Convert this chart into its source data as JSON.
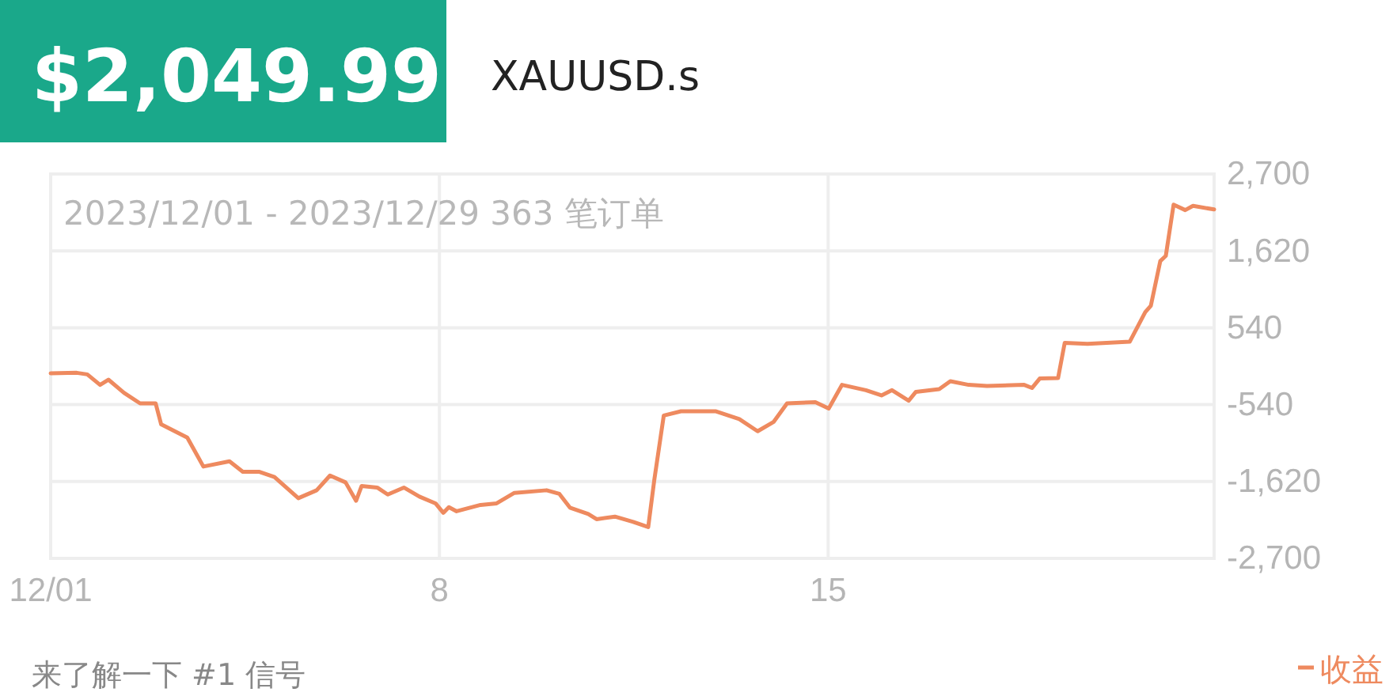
{
  "chart_data": {
    "type": "line",
    "title": "$2,049.99",
    "subtitle": "XAUUSD.s",
    "annotations": [
      "2023/12/01 - 2023/12/29 363 笔订单",
      "来了解一下 #1 信号"
    ],
    "xlim": [
      1,
      21.95
    ],
    "xticks": [
      {
        "value": 1,
        "label": "12/01"
      },
      8,
      15
    ],
    "ylim": [
      -2700,
      2700
    ],
    "yticks": [
      {
        "value": 2700,
        "label": "2,700"
      },
      {
        "value": 1620,
        "label": "1,620"
      },
      540,
      -540,
      {
        "value": -1620,
        "label": "-1,620"
      },
      {
        "value": -2700,
        "label": "-2,700"
      }
    ],
    "grid": true,
    "legend": "bottom right",
    "marker": "none",
    "line_style": "solid",
    "series": [
      {
        "name": "收益",
        "color": "#ee8a5f",
        "x": [
          1,
          1.47,
          1.66,
          1.89,
          2.04,
          2.32,
          2.61,
          2.89,
          2.99,
          3.46,
          3.75,
          4.22,
          4.46,
          4.75,
          5.03,
          5.46,
          5.79,
          6.03,
          6.31,
          6.5,
          6.6,
          6.88,
          7.07,
          7.36,
          7.64,
          7.93,
          8.07,
          8.17,
          8.31,
          8.74,
          9.03,
          9.35,
          9.93,
          10.16,
          10.35,
          10.68,
          10.83,
          11.16,
          11.49,
          11.76,
          11.87,
          12.04,
          12.35,
          12.97,
          13.4,
          13.73,
          14.02,
          14.26,
          14.77,
          15.01,
          15.25,
          15.68,
          15.96,
          16.15,
          16.45,
          16.58,
          17,
          17.2,
          17.53,
          17.86,
          18.53,
          18.67,
          18.81,
          19.14,
          19.26,
          19.67,
          20.43,
          20.71,
          20.81,
          20.98,
          21.08,
          21.22,
          21.43,
          21.57,
          21.95
        ],
        "values": [
          -100,
          -93,
          -115,
          -262,
          -189,
          -373,
          -522,
          -522,
          -817,
          -1003,
          -1410,
          -1336,
          -1483,
          -1483,
          -1558,
          -1854,
          -1743,
          -1536,
          -1632,
          -1891,
          -1683,
          -1705,
          -1803,
          -1705,
          -1832,
          -1927,
          -2060,
          -1980,
          -2038,
          -1949,
          -1927,
          -1780,
          -1743,
          -1794,
          -1987,
          -2076,
          -2149,
          -2113,
          -2187,
          -2260,
          -1594,
          -693,
          -633,
          -633,
          -744,
          -914,
          -781,
          -522,
          -506,
          -595,
          -262,
          -337,
          -411,
          -337,
          -484,
          -360,
          -322,
          -211,
          -262,
          -278,
          -262,
          -306,
          -173,
          -167,
          329,
          315,
          344,
          759,
          848,
          1476,
          1550,
          2269,
          2193,
          2253,
          2202
        ]
      }
    ]
  }
}
